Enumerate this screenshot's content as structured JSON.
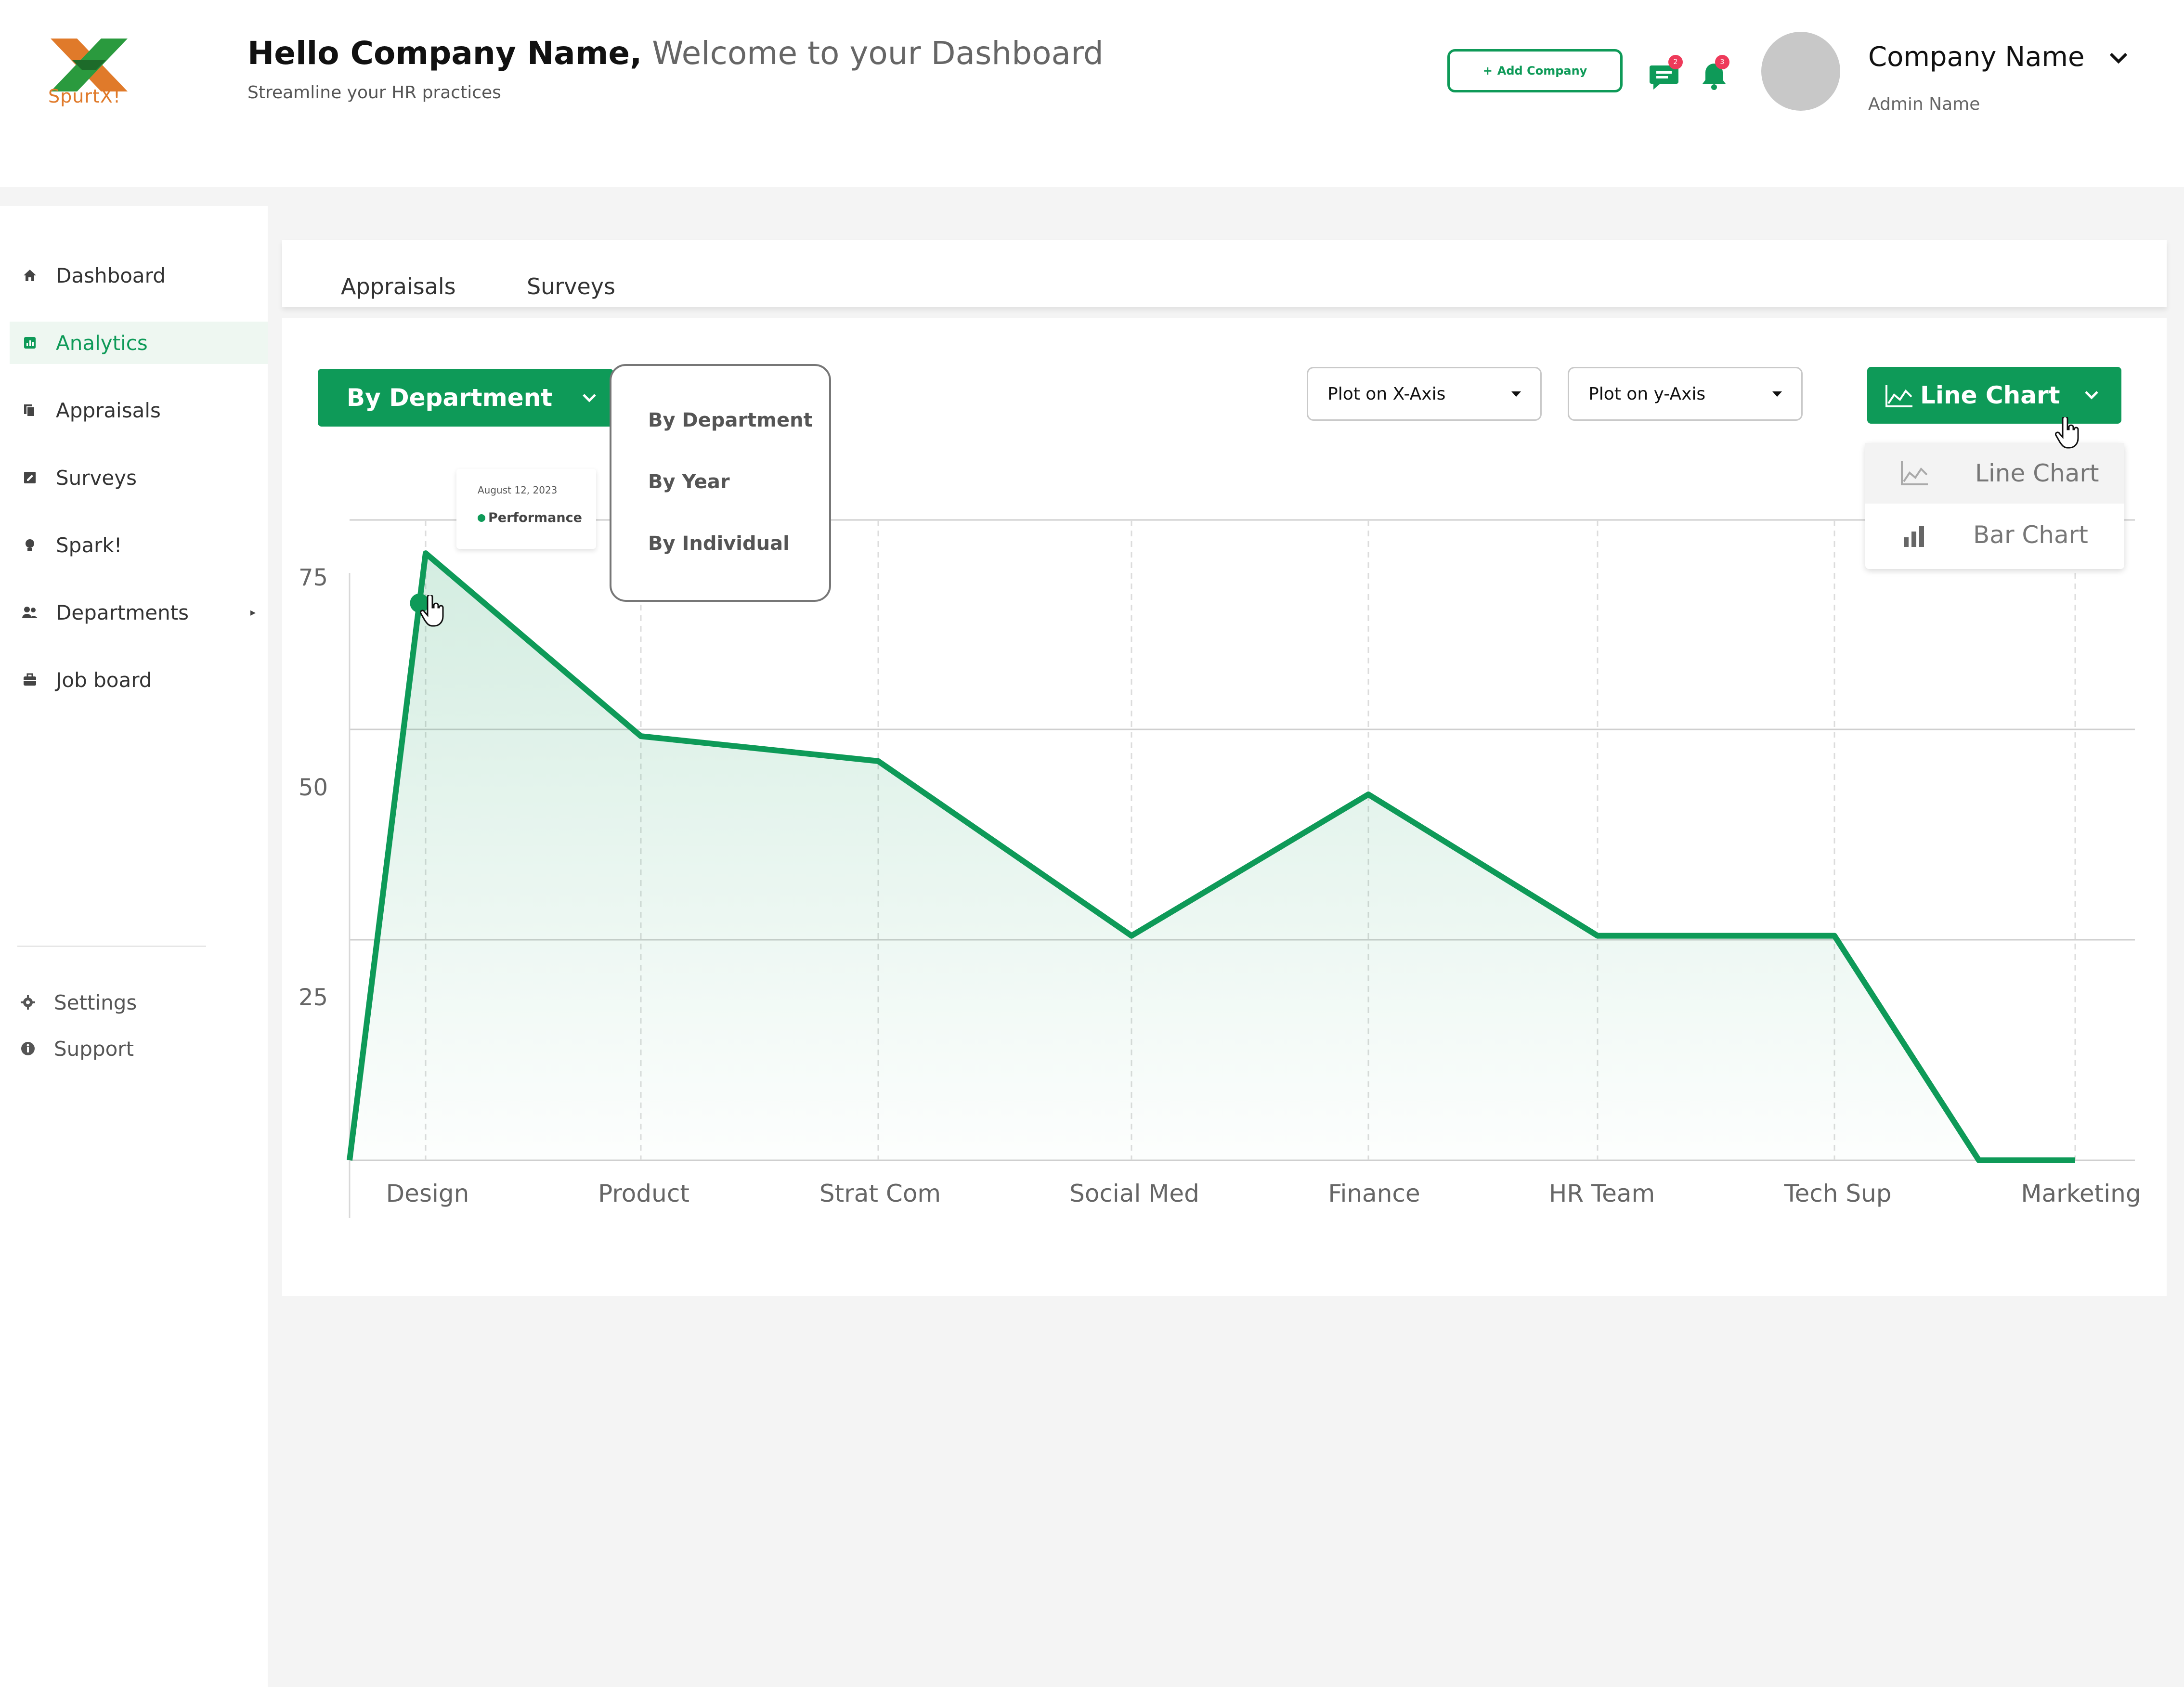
{
  "header": {
    "logo_text": "SpurtX!",
    "greeting_bold": "Hello Company Name,",
    "greeting_light": " Welcome to your Dashboard",
    "subtitle": "Streamline your HR practices",
    "add_company_label": "Add Company",
    "messages_badge": "2",
    "notifications_badge": "3",
    "company_name": "Company Name",
    "admin_name": "Admin Name"
  },
  "sidebar": {
    "items": [
      {
        "label": "Dashboard",
        "icon": "home-icon"
      },
      {
        "label": "Analytics",
        "icon": "analytics-icon",
        "active": true
      },
      {
        "label": "Appraisals",
        "icon": "documents-icon"
      },
      {
        "label": "Surveys",
        "icon": "survey-icon"
      },
      {
        "label": "Spark!",
        "icon": "spark-icon"
      },
      {
        "label": "Departments",
        "icon": "people-icon"
      },
      {
        "label": "Job board",
        "icon": "briefcase-icon"
      }
    ],
    "footer_items": [
      {
        "label": "Settings",
        "icon": "gear-icon"
      },
      {
        "label": "Support",
        "icon": "info-icon"
      }
    ]
  },
  "tabs": [
    "Appraisals",
    "Surveys"
  ],
  "controls": {
    "group_by_selected": "By Department",
    "group_by_options": [
      "By Department",
      "By Year",
      "By Individual"
    ],
    "x_axis_placeholder": "Plot on X-Axis",
    "y_axis_placeholder": "Plot on y-Axis",
    "chart_type_selected": "Line Chart",
    "chart_type_options": [
      "Line Chart",
      "Bar Chart"
    ]
  },
  "tooltip": {
    "date": "August 12, 2023",
    "series": "Performance"
  },
  "colors": {
    "accent": "#0e9a58",
    "badge": "#ee3a5a"
  },
  "chart_data": {
    "type": "area",
    "categories": [
      "Design",
      "Product",
      "Strat Com",
      "Social Med",
      "Finance",
      "HR Team",
      "Tech Sup",
      "Marketing"
    ],
    "series": [
      {
        "name": "Performance",
        "points": [
          {
            "x": 0,
            "y": 0
          },
          {
            "x": 1,
            "y": 73
          },
          {
            "x": 2,
            "y": 51
          },
          {
            "x": 3,
            "y": 48
          },
          {
            "x": 4,
            "y": 27
          },
          {
            "x": 5,
            "y": 44
          },
          {
            "x": 6,
            "y": 27
          },
          {
            "x": 7,
            "y": 27
          },
          {
            "x": 7.6,
            "y": 0
          },
          {
            "x": 8,
            "y": 0
          }
        ]
      }
    ],
    "yticks": [
      25,
      50,
      75
    ],
    "ylim": [
      0,
      77
    ],
    "grid": true,
    "xlabel": "",
    "ylabel": ""
  }
}
